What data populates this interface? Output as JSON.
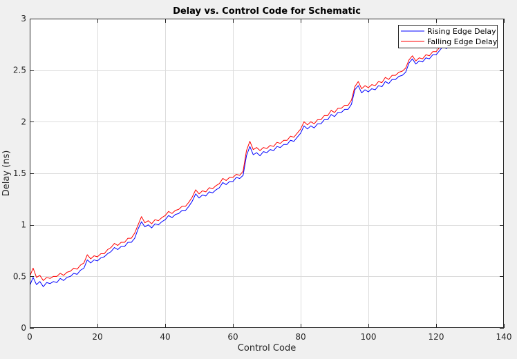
{
  "chart_data": {
    "type": "line",
    "title": "Delay vs. Control Code for Schematic",
    "xlabel": "Control Code",
    "ylabel": "Delay (ns)",
    "xlim": [
      0,
      140
    ],
    "ylim": [
      0,
      3
    ],
    "grid": true,
    "legend_position": "top-right",
    "x_ticks": [
      0,
      20,
      40,
      60,
      80,
      100,
      120,
      140
    ],
    "x_tick_labels": [
      "0",
      "20",
      "40",
      "60",
      "80",
      "100",
      "120",
      "140"
    ],
    "y_ticks": [
      0,
      0.5,
      1,
      1.5,
      2,
      2.5,
      3
    ],
    "y_tick_labels": [
      "0",
      "0.5",
      "1",
      "1.5",
      "2",
      "2.5",
      "3"
    ],
    "series": [
      {
        "name": "Rising Edge Delay",
        "color": "#0000ff",
        "x": [
          0,
          1,
          2,
          3,
          4,
          5,
          6,
          7,
          8,
          9,
          10,
          11,
          12,
          13,
          14,
          15,
          16,
          17,
          18,
          19,
          20,
          21,
          22,
          23,
          24,
          25,
          26,
          27,
          28,
          29,
          30,
          31,
          32,
          33,
          34,
          35,
          36,
          37,
          38,
          39,
          40,
          41,
          42,
          43,
          44,
          45,
          46,
          47,
          48,
          49,
          50,
          51,
          52,
          53,
          54,
          55,
          56,
          57,
          58,
          59,
          60,
          61,
          62,
          63,
          64,
          65,
          66,
          67,
          68,
          69,
          70,
          71,
          72,
          73,
          74,
          75,
          76,
          77,
          78,
          79,
          80,
          81,
          82,
          83,
          84,
          85,
          86,
          87,
          88,
          89,
          90,
          91,
          92,
          93,
          94,
          95,
          96,
          97,
          98,
          99,
          100,
          101,
          102,
          103,
          104,
          105,
          106,
          107,
          108,
          109,
          110,
          111,
          112,
          113,
          114,
          115,
          116,
          117,
          118,
          119,
          120,
          121,
          122,
          123,
          124,
          125,
          126,
          127
        ],
        "y": [
          0.41,
          0.49,
          0.42,
          0.45,
          0.4,
          0.44,
          0.43,
          0.45,
          0.44,
          0.48,
          0.46,
          0.49,
          0.5,
          0.53,
          0.52,
          0.56,
          0.58,
          0.66,
          0.63,
          0.66,
          0.65,
          0.68,
          0.69,
          0.72,
          0.74,
          0.78,
          0.76,
          0.79,
          0.79,
          0.83,
          0.83,
          0.87,
          0.96,
          1.03,
          0.98,
          1.0,
          0.97,
          1.01,
          1.0,
          1.03,
          1.05,
          1.09,
          1.07,
          1.1,
          1.11,
          1.14,
          1.14,
          1.18,
          1.23,
          1.3,
          1.26,
          1.29,
          1.28,
          1.32,
          1.31,
          1.34,
          1.36,
          1.41,
          1.39,
          1.42,
          1.42,
          1.46,
          1.45,
          1.48,
          1.67,
          1.76,
          1.68,
          1.7,
          1.67,
          1.71,
          1.7,
          1.73,
          1.72,
          1.76,
          1.75,
          1.78,
          1.78,
          1.82,
          1.81,
          1.85,
          1.89,
          1.96,
          1.93,
          1.96,
          1.94,
          1.98,
          1.98,
          2.02,
          2.02,
          2.07,
          2.05,
          2.09,
          2.09,
          2.12,
          2.12,
          2.17,
          2.31,
          2.35,
          2.28,
          2.31,
          2.29,
          2.32,
          2.31,
          2.35,
          2.34,
          2.39,
          2.37,
          2.41,
          2.41,
          2.44,
          2.45,
          2.48,
          2.57,
          2.61,
          2.56,
          2.59,
          2.58,
          2.62,
          2.61,
          2.65,
          2.65,
          2.69,
          2.73,
          2.71,
          2.73,
          2.74,
          2.76,
          2.78
        ]
      },
      {
        "name": "Falling Edge Delay",
        "color": "#ff0000",
        "x": [
          0,
          1,
          2,
          3,
          4,
          5,
          6,
          7,
          8,
          9,
          10,
          11,
          12,
          13,
          14,
          15,
          16,
          17,
          18,
          19,
          20,
          21,
          22,
          23,
          24,
          25,
          26,
          27,
          28,
          29,
          30,
          31,
          32,
          33,
          34,
          35,
          36,
          37,
          38,
          39,
          40,
          41,
          42,
          43,
          44,
          45,
          46,
          47,
          48,
          49,
          50,
          51,
          52,
          53,
          54,
          55,
          56,
          57,
          58,
          59,
          60,
          61,
          62,
          63,
          64,
          65,
          66,
          67,
          68,
          69,
          70,
          71,
          72,
          73,
          74,
          75,
          76,
          77,
          78,
          79,
          80,
          81,
          82,
          83,
          84,
          85,
          86,
          87,
          88,
          89,
          90,
          91,
          92,
          93,
          94,
          95,
          96,
          97,
          98,
          99,
          100,
          101,
          102,
          103,
          104,
          105,
          106,
          107,
          108,
          109,
          110,
          111,
          112,
          113,
          114,
          115,
          116,
          117,
          118,
          119,
          120,
          121,
          122,
          123,
          124,
          125,
          126,
          127
        ],
        "y": [
          0.5,
          0.58,
          0.49,
          0.51,
          0.46,
          0.49,
          0.48,
          0.5,
          0.5,
          0.53,
          0.51,
          0.54,
          0.55,
          0.58,
          0.57,
          0.61,
          0.63,
          0.71,
          0.67,
          0.7,
          0.69,
          0.72,
          0.72,
          0.76,
          0.78,
          0.82,
          0.8,
          0.83,
          0.83,
          0.87,
          0.87,
          0.92,
          1.0,
          1.08,
          1.02,
          1.04,
          1.01,
          1.05,
          1.04,
          1.07,
          1.09,
          1.13,
          1.11,
          1.14,
          1.15,
          1.18,
          1.18,
          1.22,
          1.27,
          1.34,
          1.3,
          1.33,
          1.32,
          1.36,
          1.35,
          1.38,
          1.4,
          1.45,
          1.43,
          1.46,
          1.46,
          1.49,
          1.48,
          1.52,
          1.72,
          1.81,
          1.73,
          1.75,
          1.72,
          1.75,
          1.74,
          1.77,
          1.76,
          1.8,
          1.79,
          1.82,
          1.82,
          1.86,
          1.85,
          1.89,
          1.93,
          2.0,
          1.97,
          2.0,
          1.98,
          2.02,
          2.02,
          2.06,
          2.06,
          2.11,
          2.09,
          2.13,
          2.13,
          2.16,
          2.16,
          2.21,
          2.34,
          2.39,
          2.32,
          2.35,
          2.33,
          2.36,
          2.35,
          2.39,
          2.38,
          2.43,
          2.41,
          2.45,
          2.45,
          2.48,
          2.49,
          2.52,
          2.6,
          2.64,
          2.59,
          2.62,
          2.61,
          2.65,
          2.64,
          2.68,
          2.68,
          2.72,
          2.76,
          2.74,
          2.76,
          2.77,
          2.79,
          2.81
        ]
      }
    ]
  }
}
